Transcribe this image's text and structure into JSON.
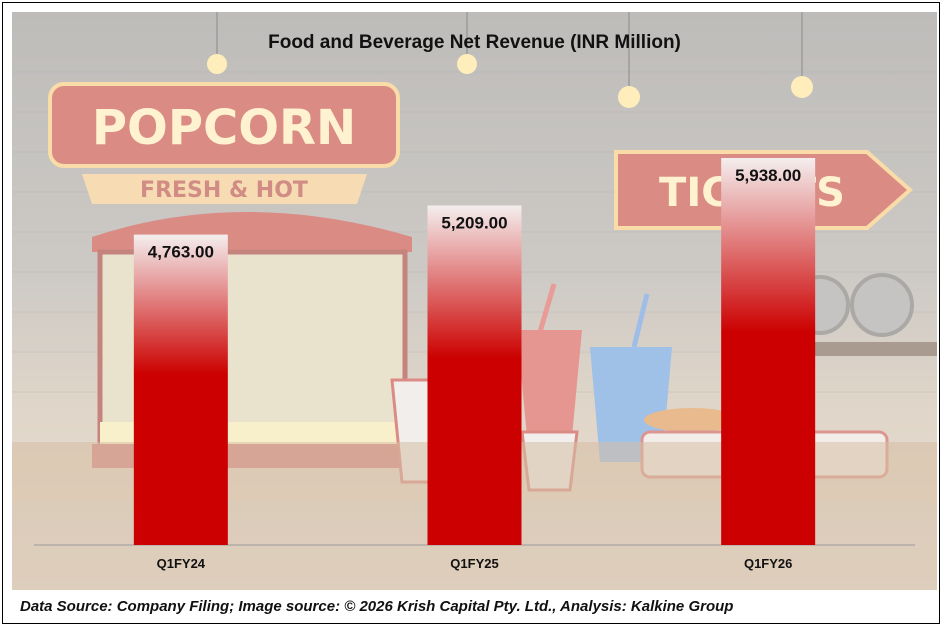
{
  "chart_data": {
    "type": "bar",
    "title": "Food and Beverage Net Revenue (INR Million)",
    "categories": [
      "Q1FY24",
      "Q1FY25",
      "Q1FY26"
    ],
    "values": [
      4763.0,
      5209.0,
      5938.0
    ],
    "value_labels": [
      "4,763.00",
      "5,209.00",
      "5,938.00"
    ],
    "xlabel": "",
    "ylabel": "",
    "ylim": [
      0,
      6500
    ],
    "grid": false,
    "legend": "none",
    "bar_color_top": "#f4eeee",
    "bar_color_bottom": "#cc0000"
  },
  "background": {
    "signs": [
      "POPCORN",
      "FRESH & HOT",
      "TICKETS"
    ]
  },
  "footer": {
    "source_text": "Data Source: Company Filing; Image source: © 2026 Krish Capital Pty. Ltd., Analysis: Kalkine Group"
  }
}
